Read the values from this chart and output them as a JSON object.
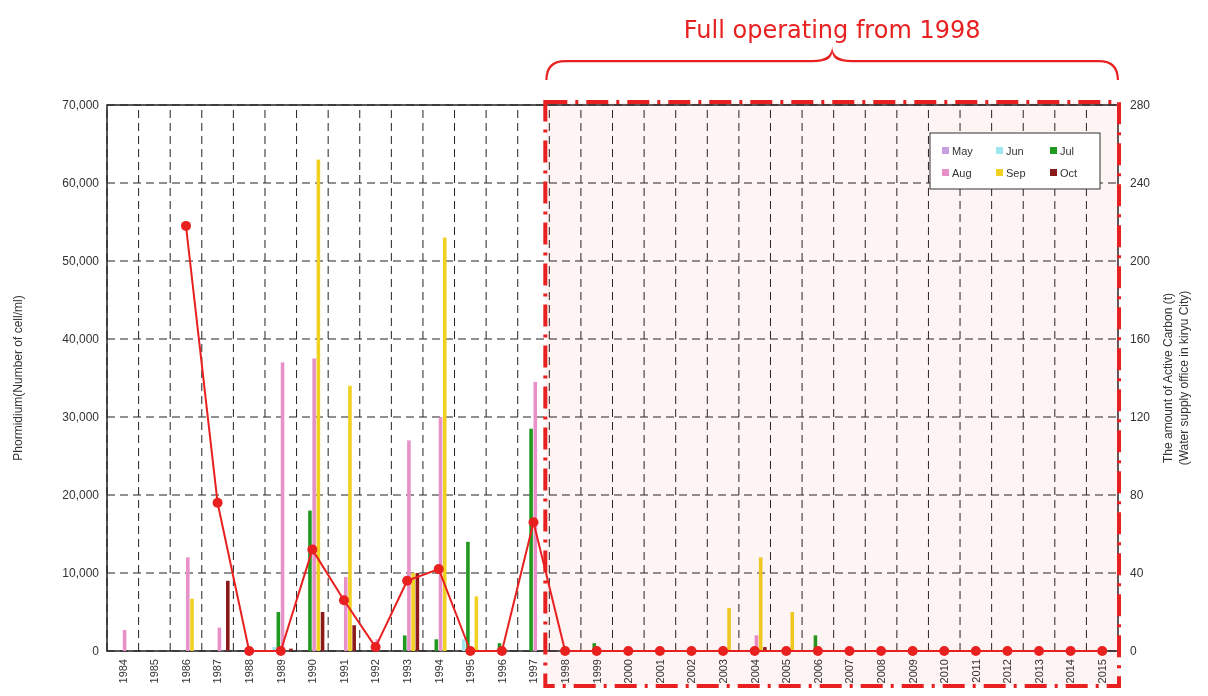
{
  "chart_data": {
    "type": "bar",
    "ylabel": "Phormidium(Number of cell/ml)",
    "y2label": "The amount of Active Carbon (t)\n(Water supply office in kiryu City)",
    "categories": [
      "1984",
      "1985",
      "1986",
      "1987",
      "1988",
      "1989",
      "1990",
      "1991",
      "1992",
      "1993",
      "1994",
      "1995",
      "1996",
      "1997",
      "1998",
      "1999",
      "2000",
      "2001",
      "2002",
      "2003",
      "2004",
      "2005",
      "2006",
      "2007",
      "2008",
      "2009",
      "2010",
      "2011",
      "2012",
      "2013",
      "2014",
      "2015"
    ],
    "series": [
      {
        "name": "May",
        "color": "#c8a0e0",
        "values": [
          0,
          0,
          0,
          0,
          0,
          0,
          0,
          0,
          0,
          0,
          0,
          0,
          0,
          0,
          0,
          0,
          0,
          0,
          0,
          0,
          0,
          0,
          0,
          0,
          0,
          0,
          0,
          0,
          0,
          0,
          0,
          0
        ]
      },
      {
        "name": "Jun",
        "color": "#9fe6ef",
        "values": [
          0,
          0,
          0,
          0,
          0,
          500,
          0,
          0,
          0,
          0,
          0,
          1500,
          0,
          0,
          0,
          0,
          0,
          0,
          0,
          0,
          0,
          0,
          0,
          0,
          0,
          0,
          0,
          0,
          0,
          0,
          0,
          0
        ]
      },
      {
        "name": "Jul",
        "color": "#1f9a1f",
        "values": [
          0,
          0,
          0,
          0,
          0,
          5000,
          18000,
          0,
          0,
          2000,
          1500,
          14000,
          1000,
          28500,
          0,
          1000,
          0,
          0,
          0,
          0,
          0,
          0,
          2000,
          0,
          0,
          0,
          0,
          0,
          0,
          0,
          0,
          0
        ]
      },
      {
        "name": "Aug",
        "color": "#e890c8",
        "values": [
          2700,
          0,
          12000,
          3000,
          0,
          37000,
          37500,
          9500,
          1500,
          27000,
          30000,
          0,
          0,
          34500,
          0,
          0,
          0,
          0,
          0,
          0,
          2000,
          0,
          0,
          0,
          0,
          0,
          0,
          0,
          0,
          0,
          0,
          0
        ]
      },
      {
        "name": "Sep",
        "color": "#f0d020",
        "values": [
          0,
          0,
          6700,
          0,
          0,
          0,
          63000,
          34000,
          0,
          10000,
          53000,
          7000,
          0,
          0,
          0,
          0,
          0,
          0,
          0,
          5500,
          12000,
          5000,
          0,
          0,
          0,
          0,
          0,
          0,
          0,
          0,
          0,
          0
        ]
      },
      {
        "name": "Oct",
        "color": "#8b1a1a",
        "values": [
          0,
          0,
          0,
          9000,
          0,
          300,
          5000,
          3300,
          0,
          10000,
          0,
          0,
          0,
          0,
          0,
          0,
          0,
          0,
          0,
          0,
          500,
          0,
          0,
          0,
          0,
          0,
          0,
          0,
          0,
          0,
          0,
          0
        ]
      },
      {
        "type": "line",
        "axis": "y2",
        "color": "#e82020",
        "marker": "circle",
        "values": [
          null,
          null,
          218,
          76,
          0,
          0,
          52,
          26,
          2,
          36,
          42,
          0,
          0,
          66,
          0,
          0,
          0,
          0,
          0,
          0,
          0,
          0,
          0,
          0,
          0,
          0,
          0,
          0,
          0,
          0,
          0,
          0
        ]
      }
    ],
    "ylim": [
      0,
      70000
    ],
    "yticks": [
      0,
      {
        "value": 10000,
        "label": "10,000"
      },
      {
        "value": 20000,
        "label": "20,000"
      },
      {
        "value": 30000,
        "label": "30,000"
      },
      {
        "value": 40000,
        "label": "40,000"
      },
      {
        "value": 50000,
        "label": "50,000"
      },
      {
        "value": 60000,
        "label": "60,000"
      },
      {
        "value": 70000,
        "label": "70,000"
      }
    ],
    "y2lim": [
      0,
      280
    ],
    "y2ticks": [
      0,
      40,
      80,
      120,
      160,
      200,
      240,
      280
    ],
    "bands": [
      {
        "axis": "x",
        "from": "1998",
        "to": "2015",
        "label": "Full operating from 1998",
        "color": "#e82020"
      }
    ],
    "grid": true,
    "legend": "top right"
  }
}
